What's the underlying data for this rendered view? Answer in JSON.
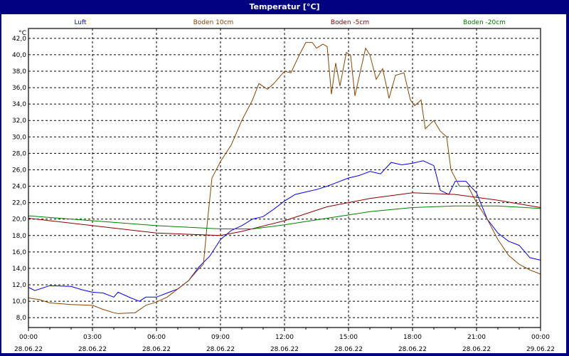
{
  "window": {
    "title": "Temperatur [°C]"
  },
  "chart_data": {
    "type": "line",
    "title": "Temperatur [°C]",
    "ylabel": "°C",
    "ylim": [
      6.8,
      43.2
    ],
    "xlim_hours": [
      0,
      24
    ],
    "grid": true,
    "legend_placement": "top",
    "yticks": [
      "8,0",
      "10,0",
      "12,0",
      "14,0",
      "16,0",
      "18,0",
      "20,0",
      "22,0",
      "24,0",
      "26,0",
      "28,0",
      "30,0",
      "32,0",
      "34,0",
      "36,0",
      "38,0",
      "40,0",
      "42,0"
    ],
    "ytick_values": [
      8,
      10,
      12,
      14,
      16,
      18,
      20,
      22,
      24,
      26,
      28,
      30,
      32,
      34,
      36,
      38,
      40,
      42
    ],
    "xticks": [
      {
        "time": "00:00",
        "date": "28.06.22"
      },
      {
        "time": "03:00",
        "date": "28.06.22"
      },
      {
        "time": "06:00",
        "date": "28.06.22"
      },
      {
        "time": "09:00",
        "date": "28.06.22"
      },
      {
        "time": "12:00",
        "date": "28.06.22"
      },
      {
        "time": "15:00",
        "date": "28.06.22"
      },
      {
        "time": "18:00",
        "date": "28.06.22"
      },
      {
        "time": "21:00",
        "date": "28.06.22"
      },
      {
        "time": "00:00",
        "date": "29.06.22"
      }
    ],
    "series": [
      {
        "name": "Luft",
        "color": "#0000ff",
        "x": [
          0,
          0.3,
          1,
          2,
          2.5,
          3,
          3.5,
          4,
          4.2,
          4.8,
          5.2,
          5.5,
          6,
          6.5,
          7,
          7.5,
          8,
          8.5,
          9,
          9.5,
          10,
          10.5,
          11,
          11.5,
          12,
          12.5,
          13,
          13.5,
          14,
          14.5,
          15,
          15.5,
          16,
          16.5,
          17,
          17.5,
          18,
          18.5,
          19,
          19.3,
          19.7,
          20,
          20.5,
          21,
          21.5,
          22,
          22.5,
          23,
          23.5,
          24
        ],
        "y": [
          11.7,
          11.3,
          11.9,
          11.8,
          11.4,
          11.1,
          11.0,
          10.5,
          11.1,
          10.4,
          10.0,
          10.5,
          10.5,
          11.0,
          11.5,
          12.5,
          14.2,
          15.5,
          17.5,
          18.6,
          19.2,
          20.0,
          20.3,
          21.2,
          22.2,
          23.0,
          23.3,
          23.6,
          24.0,
          24.5,
          25.0,
          25.3,
          25.8,
          25.5,
          26.9,
          26.6,
          26.8,
          27.1,
          26.5,
          23.5,
          23.0,
          24.6,
          24.6,
          23.2,
          20.0,
          18.3,
          17.3,
          16.8,
          15.3,
          15.0
        ]
      },
      {
        "name": "Boden 10cm",
        "color": "#8b4500",
        "x": [
          0,
          0.5,
          1,
          2,
          3,
          3.5,
          4,
          4.2,
          5,
          5.5,
          6,
          6.5,
          7,
          7.5,
          8,
          8.2,
          8.4,
          8.6,
          9,
          9.5,
          10,
          10.3,
          10.5,
          10.8,
          11.2,
          11.5,
          12,
          12.3,
          12.7,
          13,
          13.3,
          13.5,
          13.8,
          14.0,
          14.2,
          14.4,
          14.6,
          14.9,
          15.1,
          15.3,
          15.6,
          15.8,
          16,
          16.3,
          16.6,
          16.9,
          17.2,
          17.6,
          17.9,
          18.1,
          18.4,
          18.6,
          19.0,
          19.3,
          19.6,
          19.8,
          20.2,
          20.6,
          21,
          21.5,
          22,
          22.5,
          23,
          23.5,
          24
        ],
        "y": [
          10.4,
          10.2,
          9.8,
          9.6,
          9.5,
          9.0,
          8.6,
          8.5,
          8.6,
          9.5,
          9.9,
          10.5,
          11.5,
          12.5,
          14.0,
          14.5,
          20.0,
          25.0,
          27.0,
          29.0,
          32.0,
          33.5,
          34.5,
          36.5,
          35.8,
          36.5,
          38.0,
          37.8,
          40.0,
          41.5,
          41.5,
          40.8,
          41.3,
          41.0,
          35.2,
          39.0,
          36.2,
          40.3,
          39.9,
          35.0,
          38.5,
          40.8,
          40.0,
          37.0,
          38.3,
          34.7,
          37.5,
          37.8,
          34.5,
          33.8,
          34.5,
          31.0,
          32.0,
          30.7,
          30.0,
          26.0,
          24.0,
          24.0,
          22.0,
          20.0,
          17.5,
          15.6,
          14.5,
          13.8,
          13.3
        ]
      },
      {
        "name": "Boden -5cm",
        "color": "#8b0000",
        "x": [
          0,
          3,
          6,
          9,
          10,
          12,
          14,
          16,
          18,
          20,
          22,
          24
        ],
        "y": [
          20.1,
          19.2,
          18.3,
          18.0,
          18.5,
          19.8,
          21.5,
          22.5,
          23.2,
          23.0,
          22.3,
          21.4
        ]
      },
      {
        "name": "Boden -20cm",
        "color": "#008000",
        "x": [
          0,
          3,
          6,
          9,
          10.5,
          12,
          14,
          16,
          18,
          20,
          22,
          24
        ],
        "y": [
          20.4,
          19.8,
          19.2,
          18.8,
          18.8,
          19.3,
          20.1,
          20.9,
          21.4,
          21.6,
          21.6,
          21.3
        ]
      }
    ]
  }
}
